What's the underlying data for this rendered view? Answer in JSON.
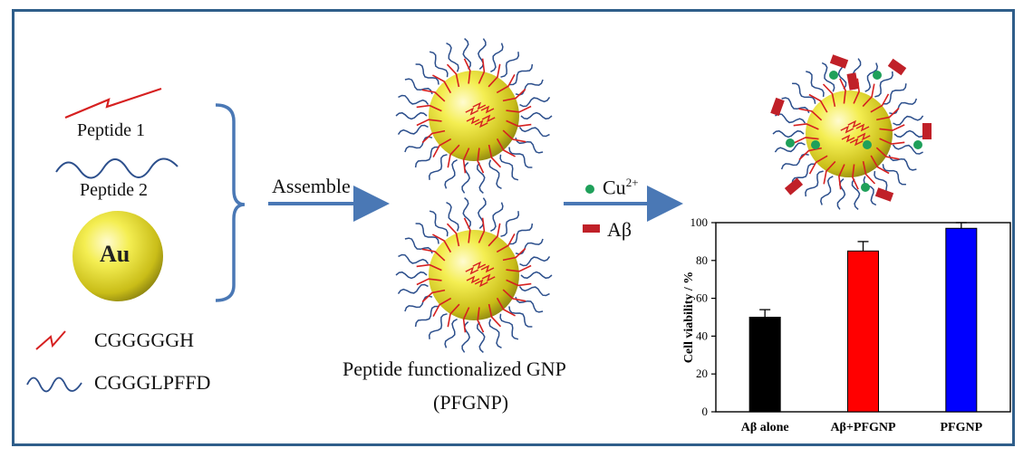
{
  "legend": {
    "peptide1_label": "Peptide 1",
    "peptide2_label": "Peptide 2",
    "gold_label": "Au",
    "seq1": "CGGGGGH",
    "seq2": "CGGGLPFFD"
  },
  "steps": {
    "assemble_label": "Assemble",
    "cu_label": "Cu",
    "cu_charge": "2+",
    "abeta_label": "Aβ"
  },
  "product": {
    "caption_line1": "Peptide functionalized GNP",
    "caption_line2": "(PFGNP)"
  },
  "colors": {
    "frame": "#2f5e8a",
    "arrow": "#4a78b5",
    "peptide_red": "#d62020",
    "peptide_blue": "#2c4f8c",
    "gold": "#e8e030",
    "cu_green": "#1fa05a",
    "abeta_red": "#c02028"
  },
  "chart_data": {
    "type": "bar",
    "categories": [
      "Aβ alone",
      "Aβ+PFGNP",
      "PFGNP"
    ],
    "values": [
      50,
      85,
      97
    ],
    "errors": [
      4,
      5,
      3
    ],
    "colors": [
      "#000000",
      "#ff0000",
      "#0000ff"
    ],
    "ylabel": "Cell viability / %",
    "ylim": [
      0,
      100
    ],
    "yticks": [
      0,
      20,
      40,
      60,
      80,
      100
    ],
    "grid": false
  }
}
